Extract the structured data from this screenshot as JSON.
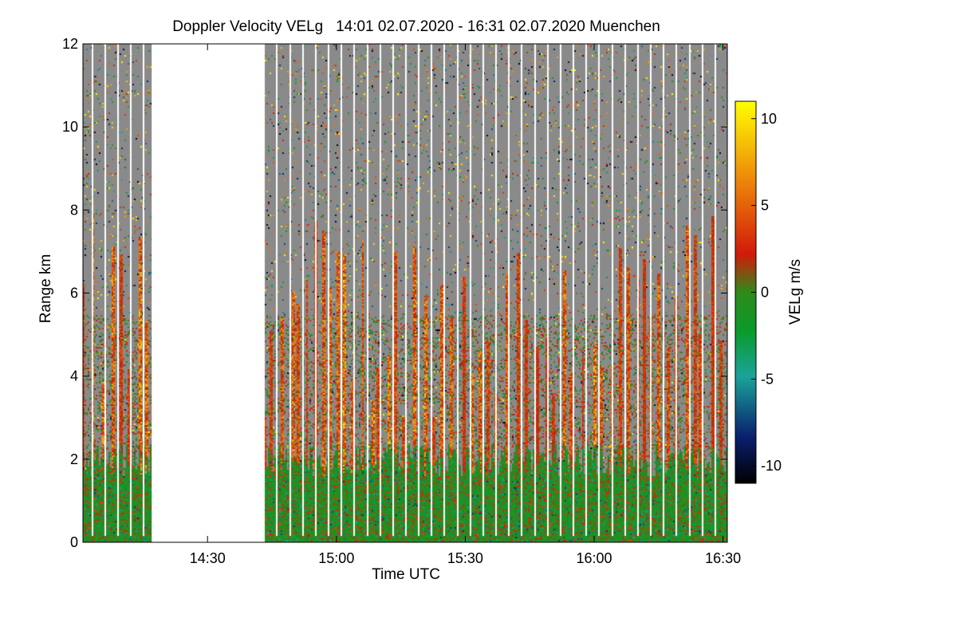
{
  "chart_data": {
    "type": "heatmap",
    "title": "Doppler Velocity VELg   14:01 02.07.2020 - 16:31 02.07.2020 Muenchen",
    "xlabel": "Time UTC",
    "ylabel": "Range km",
    "colorbar_label": "VELg m/s",
    "x_range_minutes_utc": [
      841,
      991
    ],
    "y_range_km": [
      0,
      12
    ],
    "color_range_ms": [
      -11,
      11
    ],
    "x_ticks": [
      {
        "value": 870,
        "label": "14:30"
      },
      {
        "value": 900,
        "label": "15:00"
      },
      {
        "value": 930,
        "label": "15:30"
      },
      {
        "value": 960,
        "label": "16:00"
      },
      {
        "value": 990,
        "label": "16:30"
      }
    ],
    "y_ticks": [
      {
        "value": 0,
        "label": "0"
      },
      {
        "value": 2,
        "label": "2"
      },
      {
        "value": 4,
        "label": "4"
      },
      {
        "value": 6,
        "label": "6"
      },
      {
        "value": 8,
        "label": "8"
      },
      {
        "value": 10,
        "label": "10"
      },
      {
        "value": 12,
        "label": "12"
      }
    ],
    "colorbar_ticks": [
      {
        "value": 10,
        "label": "10"
      },
      {
        "value": 5,
        "label": "5"
      },
      {
        "value": 0,
        "label": "0"
      },
      {
        "value": -5,
        "label": "-5"
      },
      {
        "value": -10,
        "label": "-10"
      }
    ],
    "colormap": [
      "#000000",
      "#0a1e6e",
      "#1aa39a",
      "#0a9a2a",
      "#2f8a1a",
      "#d21a0a",
      "#ee8a0a",
      "#ffff00"
    ],
    "no_signal_color": "#8a8a8a",
    "data_gap": {
      "start": "14:17",
      "end": "14:43",
      "start_min": 857,
      "end_min": 883
    },
    "scan_break_times_min": [
      843,
      846,
      849,
      852,
      855,
      886,
      889,
      892,
      895,
      898,
      901,
      904,
      907,
      910,
      913,
      916,
      919,
      922,
      925,
      928,
      931,
      934,
      937,
      940,
      943,
      946,
      949,
      952,
      955,
      958,
      961,
      964,
      967,
      970,
      973,
      976,
      979,
      982,
      985,
      988
    ],
    "layers_approx": [
      {
        "description": "near-ground mixed layer",
        "range_km": [
          0,
          2
        ],
        "velocity_ms_range": [
          -5,
          3
        ],
        "dominant": "green with red streaks"
      },
      {
        "description": "aerosol/insect layer",
        "range_km": [
          2,
          5.5
        ],
        "velocity_ms_range": [
          -2,
          6
        ],
        "dominant": "red-orange plumes"
      },
      {
        "description": "upper noise region",
        "range_km": [
          5.5,
          12
        ],
        "velocity_ms_range": [
          -11,
          11
        ],
        "dominant": "gray with sparse speckle"
      }
    ]
  }
}
